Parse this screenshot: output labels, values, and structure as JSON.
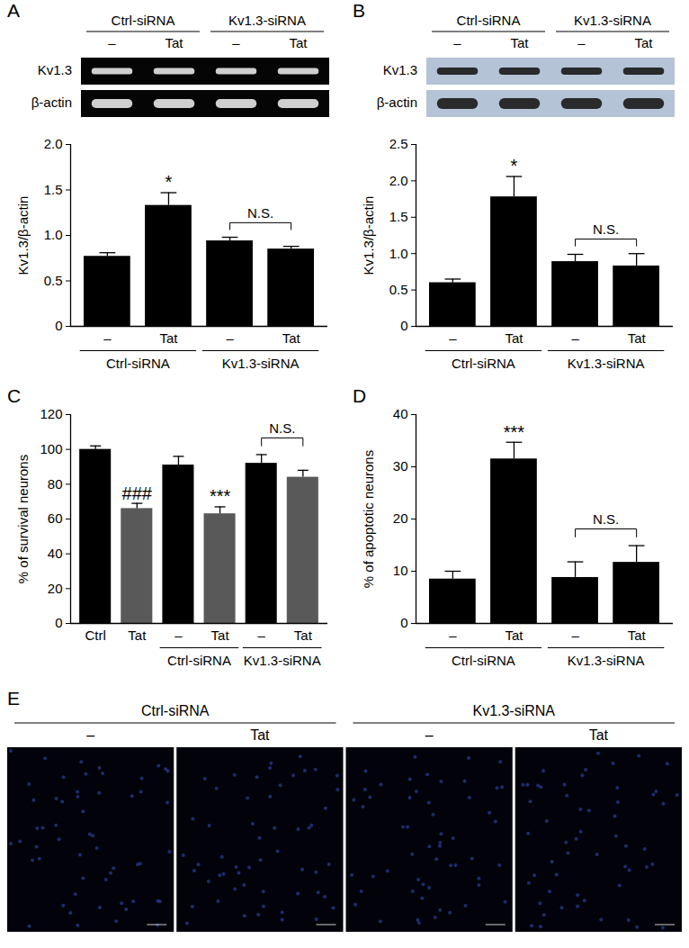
{
  "chart_data": [
    {
      "type": "bar",
      "title": "A",
      "ylabel": "Kv1.3/β-actin",
      "categories": [
        "–",
        "Tat",
        "–",
        "Tat"
      ],
      "groups": [
        "Ctrl-siRNA",
        "Ctrl-siRNA",
        "Kv1.3-siRNA",
        "Kv1.3-siRNA"
      ],
      "values": [
        0.77,
        1.33,
        0.94,
        0.85
      ],
      "errors": [
        0.04,
        0.14,
        0.04,
        0.03
      ],
      "color": "#000000",
      "ylim": [
        0,
        2
      ],
      "yticks": [
        0,
        0.5,
        {
          "value": 1,
          "label": "1.0"
        },
        1.5,
        {
          "value": 2,
          "label": "2.0"
        }
      ],
      "significance": [
        null,
        "*",
        null,
        null
      ],
      "brackets": [
        {
          "label": "N.S.",
          "categories": [
            2,
            3
          ]
        }
      ]
    },
    {
      "type": "bar",
      "title": "B",
      "ylabel": "Kv1.3/β-actin",
      "categories": [
        "–",
        "Tat",
        "–",
        "Tat"
      ],
      "groups": [
        "Ctrl-siRNA",
        "Ctrl-siRNA",
        "Kv1.3-siRNA",
        "Kv1.3-siRNA"
      ],
      "values": [
        0.6,
        1.78,
        0.89,
        0.83
      ],
      "errors": [
        0.05,
        0.28,
        0.1,
        0.17
      ],
      "color": "#000000",
      "ylim": [
        0,
        2.5
      ],
      "yticks": [
        0,
        0.5,
        {
          "value": 1,
          "label": "1.0"
        },
        1.5,
        {
          "value": 2,
          "label": "2.0"
        },
        2.5
      ],
      "significance": [
        null,
        "*",
        null,
        null
      ],
      "brackets": [
        {
          "label": "N.S.",
          "categories": [
            2,
            3
          ]
        }
      ]
    },
    {
      "type": "bar",
      "title": "C",
      "ylabel": "% of survival neurons",
      "categories": [
        "Ctrl",
        "Tat",
        "–",
        "Tat",
        "–",
        "Tat"
      ],
      "groups": [
        null,
        null,
        "Ctrl-siRNA",
        "Ctrl-siRNA",
        "Kv1.3-siRNA",
        "Kv1.3-siRNA"
      ],
      "values": [
        100,
        66,
        91,
        63,
        92,
        84
      ],
      "errors": [
        2,
        3,
        5,
        4,
        5,
        4
      ],
      "colors": [
        "#000000",
        "#595959",
        "#000000",
        "#595959",
        "#000000",
        "#595959"
      ],
      "ylim": [
        0,
        120
      ],
      "yticks": [
        0,
        20,
        40,
        60,
        80,
        100,
        120
      ],
      "significance": [
        null,
        "###",
        null,
        "***",
        null,
        null
      ],
      "brackets": [
        {
          "label": "N.S.",
          "categories": [
            4,
            5
          ]
        }
      ]
    },
    {
      "type": "bar",
      "title": "D",
      "ylabel": "% of apoptotic neurons",
      "categories": [
        "–",
        "Tat",
        "–",
        "Tat"
      ],
      "groups": [
        "Ctrl-siRNA",
        "Ctrl-siRNA",
        "Kv1.3-siRNA",
        "Kv1.3-siRNA"
      ],
      "values": [
        8.5,
        31.5,
        8.8,
        11.7
      ],
      "errors": [
        1.5,
        3.2,
        3.0,
        3.2
      ],
      "color": "#000000",
      "ylim": [
        0,
        40
      ],
      "yticks": [
        0,
        10,
        20,
        30,
        40
      ],
      "significance": [
        null,
        "***",
        null,
        null
      ],
      "brackets": [
        {
          "label": "N.S.",
          "categories": [
            2,
            3
          ]
        }
      ]
    }
  ],
  "blots": [
    {
      "type": "gel",
      "groups": [
        {
          "label": "Ctrl-siRNA",
          "lanes": [
            "–",
            "Tat"
          ]
        },
        {
          "label": "Kv1.3-siRNA",
          "lanes": [
            "–",
            "Tat"
          ]
        }
      ],
      "rows": [
        "Kv1.3",
        "β-actin"
      ]
    },
    {
      "type": "western",
      "groups": [
        {
          "label": "Ctrl-siRNA",
          "lanes": [
            "–",
            "Tat"
          ]
        },
        {
          "label": "Kv1.3-siRNA",
          "lanes": [
            "–",
            "Tat"
          ]
        }
      ],
      "rows": [
        "Kv1.3",
        "β-actin"
      ]
    }
  ],
  "micrographs": {
    "title": "E",
    "groups": [
      {
        "label": "Ctrl-siRNA",
        "panels": [
          "–",
          "Tat"
        ]
      },
      {
        "label": "Kv1.3-siRNA",
        "panels": [
          "–",
          "Tat"
        ]
      }
    ]
  }
}
